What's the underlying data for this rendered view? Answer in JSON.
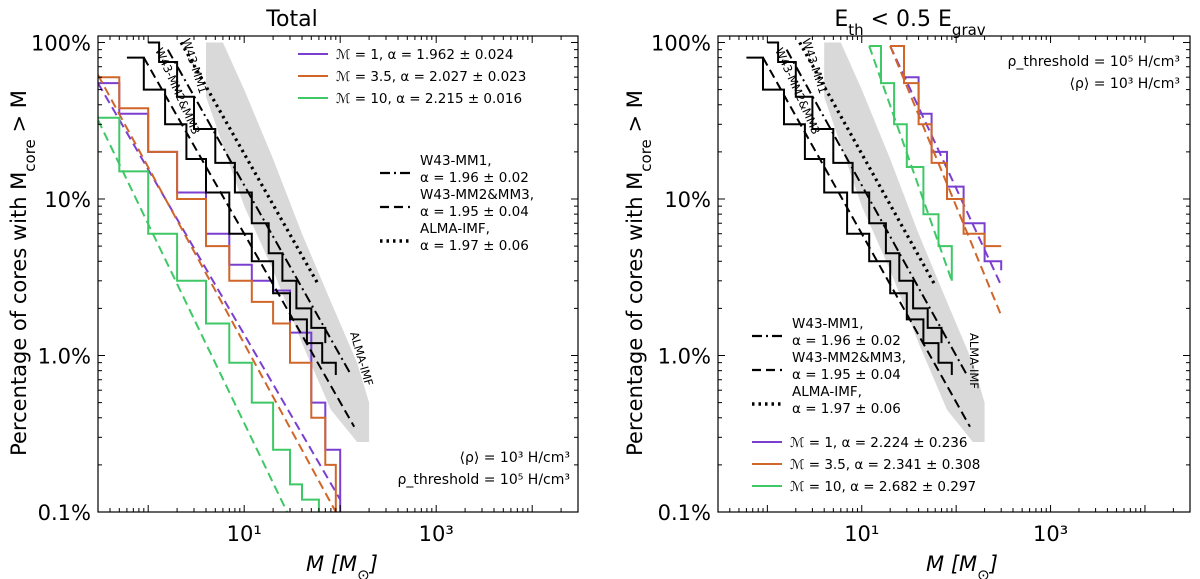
{
  "chart_data": [
    {
      "type": "line",
      "title": "Total",
      "xlabel": "M [M⊙]",
      "ylabel": "Percentage of cores with M_core > M",
      "xscale": "log",
      "yscale": "log",
      "xlim": [
        0.3,
        30000
      ],
      "ylim": [
        0.1,
        110
      ],
      "xticklabels": [
        "10¹",
        "10³"
      ],
      "yticklabels": [
        "0.1%",
        "1.0%",
        "10%",
        "100%"
      ],
      "legend_sim": [
        {
          "name": "ℳ = 1,  α = 1.962 ± 0.024",
          "color": "#7b3fd0"
        },
        {
          "name": "ℳ = 3.5,  α = 2.027 ± 0.023",
          "color": "#d0662a"
        },
        {
          "name": "ℳ = 10,  α = 2.215 ± 0.016",
          "color": "#3ec866"
        }
      ],
      "legend_obs": [
        {
          "line1": "W43-MM1,",
          "line2": "α = 1.96 ± 0.02",
          "dash": "dashdot"
        },
        {
          "line1": "W43-MM2&MM3,",
          "line2": "α = 1.95 ± 0.04",
          "dash": "dashed"
        },
        {
          "line1": "ALMA-IMF,",
          "line2": "α = 1.97 ± 0.06",
          "dash": "dotted"
        }
      ],
      "annotation_lines": [
        "⟨ρ⟩ = 10³ H/cm³",
        "ρ_threshold = 10⁵ H/cm³"
      ],
      "curve_labels": [
        "W43-MM1",
        "W43-MM2&MM3",
        "ALMA-IMF"
      ],
      "series": [
        {
          "name": "ℳ = 1",
          "color": "#7b3fd0",
          "style": "step",
          "x": [
            0.3,
            0.5,
            1,
            2,
            4,
            7,
            12,
            20,
            30,
            50,
            70,
            100
          ],
          "y": [
            55,
            35,
            20,
            11,
            6,
            3.8,
            3,
            2.6,
            1.4,
            0.5,
            0.25,
            0.1
          ]
        },
        {
          "name": "ℳ = 1 fit",
          "color": "#7b3fd0",
          "style": "dashed",
          "x": [
            0.3,
            100
          ],
          "y": [
            55,
            0.12
          ]
        },
        {
          "name": "ℳ = 3.5",
          "color": "#d0662a",
          "style": "step",
          "x": [
            0.3,
            0.5,
            1,
            2,
            4,
            7,
            12,
            20,
            30,
            50,
            70,
            90
          ],
          "y": [
            60,
            38,
            20,
            10,
            5,
            3,
            2.2,
            1.6,
            0.9,
            0.4,
            0.2,
            0.1
          ]
        },
        {
          "name": "ℳ = 3.5 fit",
          "color": "#d0662a",
          "style": "dashed",
          "x": [
            0.3,
            90
          ],
          "y": [
            62,
            0.1
          ]
        },
        {
          "name": "ℳ = 10",
          "color": "#3ec866",
          "style": "step",
          "x": [
            0.3,
            0.5,
            1,
            2,
            4,
            7,
            12,
            20,
            30,
            40,
            60
          ],
          "y": [
            33,
            15,
            6,
            3,
            1.6,
            0.9,
            0.5,
            0.25,
            0.15,
            0.12,
            0.1
          ]
        },
        {
          "name": "ℳ = 10 fit",
          "color": "#3ec866",
          "style": "dashed",
          "x": [
            0.3,
            28
          ],
          "y": [
            32,
            0.1
          ]
        },
        {
          "name": "W43-MM1",
          "color": "#000000",
          "style": "step",
          "x": [
            1,
            1.3,
            2,
            3,
            5,
            8,
            12,
            18,
            25,
            35,
            50,
            70
          ],
          "y": [
            100,
            75,
            45,
            28,
            17,
            11,
            7,
            4.5,
            3,
            2,
            1.5,
            1.2
          ]
        },
        {
          "name": "W43-MM1 fit",
          "color": "#000000",
          "style": "dashdot",
          "x": [
            1.6,
            130
          ],
          "y": [
            90,
            0.75
          ]
        },
        {
          "name": "W43-MM2&MM3",
          "color": "#000000",
          "style": "step",
          "x": [
            0.6,
            0.9,
            1.5,
            2.5,
            4,
            7,
            12,
            20,
            30,
            45,
            65,
            90
          ],
          "y": [
            80,
            50,
            30,
            18,
            11,
            6,
            4,
            2.5,
            1.7,
            1.2,
            0.9,
            0.75
          ]
        },
        {
          "name": "W43-MM2&MM3 fit",
          "color": "#000000",
          "style": "dashed",
          "x": [
            0.9,
            140
          ],
          "y": [
            80,
            0.35
          ]
        },
        {
          "name": "ALMA-IMF fit",
          "color": "#000000",
          "style": "dotted",
          "x": [
            2.2,
            60
          ],
          "y": [
            100,
            2.8
          ]
        },
        {
          "name": "ALMA-IMF band",
          "color": "#d9d9d9",
          "style": "band",
          "x": [
            4,
            6,
            10,
            20,
            40,
            80,
            150,
            200
          ],
          "lower": [
            45,
            22,
            9,
            3.5,
            1.2,
            0.45,
            0.28,
            0.28
          ],
          "upper": [
            100,
            100,
            50,
            18,
            6,
            2.2,
            0.9,
            0.5
          ]
        }
      ]
    },
    {
      "type": "line",
      "title": "E_th < 0.5 E_grav",
      "xlabel": "M [M⊙]",
      "ylabel": "Percentage of cores with M_core > M",
      "xscale": "log",
      "yscale": "log",
      "xlim": [
        0.3,
        30000
      ],
      "ylim": [
        0.1,
        110
      ],
      "xticklabels": [
        "10¹",
        "10³"
      ],
      "yticklabels": [
        "0.1%",
        "1.0%",
        "10%",
        "100%"
      ],
      "legend_sim": [
        {
          "name": "ℳ = 1,  α = 2.224 ± 0.236",
          "color": "#7b3fd0"
        },
        {
          "name": "ℳ = 3.5,  α = 2.341 ± 0.308",
          "color": "#d0662a"
        },
        {
          "name": "ℳ = 10,  α = 2.682 ± 0.297",
          "color": "#3ec866"
        }
      ],
      "legend_obs": [
        {
          "line1": "W43-MM1,",
          "line2": "α = 1.96 ± 0.02",
          "dash": "dashdot"
        },
        {
          "line1": "W43-MM2&MM3,",
          "line2": "α = 1.95 ± 0.04",
          "dash": "dashed"
        },
        {
          "line1": "ALMA-IMF,",
          "line2": "α = 1.97 ± 0.06",
          "dash": "dotted"
        }
      ],
      "annotation_lines": [
        "ρ_threshold = 10⁵ H/cm³",
        "⟨ρ⟩ = 10³ H/cm³"
      ],
      "curve_labels": [
        "W43-MM1",
        "W43-MM2&MM3",
        "ALMA-IMF"
      ],
      "series": [
        {
          "name": "ℳ = 1",
          "color": "#7b3fd0",
          "style": "step",
          "x": [
            20,
            28,
            40,
            55,
            80,
            120,
            200,
            300
          ],
          "y": [
            95,
            60,
            35,
            20,
            12,
            7,
            4,
            3.5
          ]
        },
        {
          "name": "ℳ = 1 fit",
          "color": "#7b3fd0",
          "style": "dashed",
          "x": [
            20,
            300
          ],
          "y": [
            95,
            2.8
          ]
        },
        {
          "name": "ℳ = 3.5",
          "color": "#d0662a",
          "style": "step",
          "x": [
            20,
            28,
            40,
            55,
            80,
            120,
            200,
            300
          ],
          "y": [
            95,
            55,
            30,
            17,
            10,
            6,
            5,
            5
          ]
        },
        {
          "name": "ℳ = 3.5 fit",
          "color": "#d0662a",
          "style": "dashed",
          "x": [
            20,
            300
          ],
          "y": [
            95,
            1.8
          ]
        },
        {
          "name": "ℳ = 10",
          "color": "#3ec866",
          "style": "step",
          "x": [
            12,
            16,
            22,
            30,
            45,
            65,
            90
          ],
          "y": [
            95,
            55,
            30,
            16,
            8,
            5,
            3
          ]
        },
        {
          "name": "ℳ = 10 fit",
          "color": "#3ec866",
          "style": "dashed",
          "x": [
            12,
            90
          ],
          "y": [
            95,
            3
          ]
        },
        {
          "name": "W43-MM1",
          "color": "#000000",
          "style": "step",
          "x": [
            1,
            1.3,
            2,
            3,
            5,
            8,
            12,
            18,
            25,
            35,
            50,
            70
          ],
          "y": [
            100,
            75,
            45,
            28,
            17,
            11,
            7,
            4.5,
            3,
            2,
            1.5,
            1.2
          ]
        },
        {
          "name": "W43-MM1 fit",
          "color": "#000000",
          "style": "dashdot",
          "x": [
            1.6,
            130
          ],
          "y": [
            90,
            0.75
          ]
        },
        {
          "name": "W43-MM2&MM3",
          "color": "#000000",
          "style": "step",
          "x": [
            0.6,
            0.9,
            1.5,
            2.5,
            4,
            7,
            12,
            20,
            30,
            45,
            65,
            90
          ],
          "y": [
            80,
            50,
            30,
            18,
            11,
            6,
            4,
            2.5,
            1.7,
            1.2,
            0.9,
            0.75
          ]
        },
        {
          "name": "W43-MM2&MM3 fit",
          "color": "#000000",
          "style": "dashed",
          "x": [
            0.9,
            140
          ],
          "y": [
            80,
            0.35
          ]
        },
        {
          "name": "ALMA-IMF fit",
          "color": "#000000",
          "style": "dotted",
          "x": [
            2.2,
            60
          ],
          "y": [
            100,
            2.8
          ]
        },
        {
          "name": "ALMA-IMF band",
          "color": "#d9d9d9",
          "style": "band",
          "x": [
            4,
            6,
            10,
            20,
            40,
            80,
            150,
            200
          ],
          "lower": [
            45,
            22,
            9,
            3.5,
            1.2,
            0.45,
            0.28,
            0.28
          ],
          "upper": [
            100,
            100,
            50,
            18,
            6,
            2.2,
            0.9,
            0.5
          ]
        }
      ]
    }
  ]
}
